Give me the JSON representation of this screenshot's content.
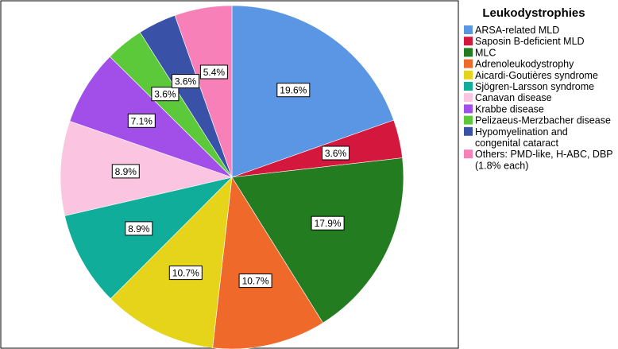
{
  "chart_data": {
    "type": "pie",
    "legend": {
      "title": "Leukodystrophies",
      "placement": "right"
    },
    "slices": [
      {
        "name": "ARSA-related MLD",
        "value": 19.6,
        "label": "19.6%",
        "color": "#5a96e3",
        "legend_lines": [
          "ARSA-related MLD"
        ]
      },
      {
        "name": "Saposin B-deficient MLD",
        "value": 3.6,
        "label": "3.6%",
        "color": "#d4183d",
        "legend_lines": [
          "Saposin B-deficient MLD"
        ]
      },
      {
        "name": "MLC",
        "value": 17.9,
        "label": "17.9%",
        "color": "#237c20",
        "legend_lines": [
          "MLC"
        ]
      },
      {
        "name": "Adrenoleukodystrophy",
        "value": 10.7,
        "label": "10.7%",
        "color": "#ef6a2a",
        "legend_lines": [
          "Adrenoleukodystrophy"
        ]
      },
      {
        "name": "Aicardi-Goutières syndrome",
        "value": 10.7,
        "label": "10.7%",
        "color": "#e5d41a",
        "legend_lines": [
          "Aicardi-Goutières syndrome"
        ]
      },
      {
        "name": "Sjögren-Larsson syndrome",
        "value": 8.9,
        "label": "8.9%",
        "color": "#10ad9a",
        "legend_lines": [
          "Sjögren-Larsson syndrome"
        ]
      },
      {
        "name": "Canavan disease",
        "value": 8.9,
        "label": "8.9%",
        "color": "#fbc4e1",
        "legend_lines": [
          "Canavan disease"
        ]
      },
      {
        "name": "Krabbe disease",
        "value": 7.1,
        "label": "7.1%",
        "color": "#a24ee8",
        "legend_lines": [
          "Krabbe disease"
        ]
      },
      {
        "name": "Pelizaeus-Merzbacher disease",
        "value": 3.6,
        "label": "3.6%",
        "color": "#5bc93a",
        "legend_lines": [
          "Pelizaeus-Merzbacher disease"
        ]
      },
      {
        "name": "Hypomyelination and congenital cataract",
        "value": 3.6,
        "label": "3.6%",
        "color": "#3952a8",
        "legend_lines": [
          "Hypomyelination and",
          "congenital cataract"
        ]
      },
      {
        "name": "Others: PMD-like, H-ABC, DBP (1.8% each)",
        "value": 5.4,
        "label": "5.4%",
        "color": "#f880b8",
        "legend_lines": [
          "Others: PMD-like, H-ABC, DBP",
          "(1.8% each)"
        ]
      }
    ]
  }
}
